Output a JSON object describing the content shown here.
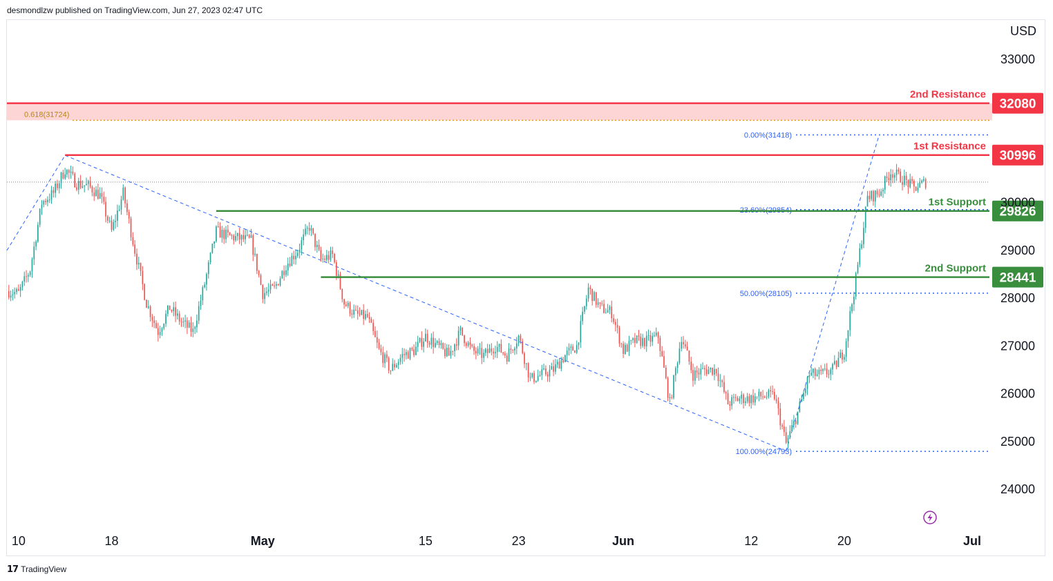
{
  "header": {
    "publisher": "desmondlzw published on TradingView.com, Jun 27, 2023 02:47 UTC"
  },
  "brand": {
    "name": "TradingView",
    "logo": "tv-logo"
  },
  "colors": {
    "up": "#26a69a",
    "down": "#ef5350",
    "resistance": "#f23645",
    "support": "#388e3c",
    "fib": "#2962ff",
    "fib_gold": "#e6a00a",
    "zone": "#fdd5d5",
    "price_dots": "#787b86",
    "lightning": "#9c27b0"
  },
  "icons": {
    "lightning": "lightning-icon"
  },
  "chart_data": {
    "type": "candlestick",
    "currency_label": "USD",
    "y_range": [
      23400,
      33800
    ],
    "y_ticks": [
      24000,
      25000,
      26000,
      27000,
      28000,
      29000,
      30000,
      33000
    ],
    "y_tick_labels": [
      "24000",
      "25000",
      "26000",
      "27000",
      "28000",
      "29000",
      "30000",
      "33000"
    ],
    "x_range_days": [
      "2023-04-09",
      "2023-07-01"
    ],
    "x_ticks": [
      {
        "label": "10",
        "date": "2023-04-10",
        "bold": false
      },
      {
        "label": "18",
        "date": "2023-04-18",
        "bold": false
      },
      {
        "label": "May",
        "date": "2023-05-01",
        "bold": true
      },
      {
        "label": "15",
        "date": "2023-05-15",
        "bold": false
      },
      {
        "label": "23",
        "date": "2023-05-23",
        "bold": false
      },
      {
        "label": "Jun",
        "date": "2023-06-01",
        "bold": true
      },
      {
        "label": "12",
        "date": "2023-06-12",
        "bold": false
      },
      {
        "label": "20",
        "date": "2023-06-20",
        "bold": false
      },
      {
        "label": "Jul",
        "date": "2023-07-01",
        "bold": true
      }
    ],
    "levels": [
      {
        "name": "2nd Resistance",
        "value": 32080,
        "tag": "32080",
        "kind": "resistance",
        "start_date": "2023-04-09"
      },
      {
        "name": "1st Resistance",
        "value": 30996,
        "tag": "30996",
        "kind": "resistance",
        "start_date": "2023-04-14"
      },
      {
        "name": "1st Support",
        "value": 29826,
        "tag": "29826",
        "kind": "support",
        "start_date": "2023-04-27"
      },
      {
        "name": "2nd Support",
        "value": 28441,
        "tag": "28441",
        "kind": "support",
        "start_date": "2023-05-06"
      }
    ],
    "resistance_zone": {
      "from": 31724,
      "to": 32080,
      "start_date": "2023-04-09"
    },
    "fib_gold": {
      "label": "0.618(31724)",
      "value": 31724
    },
    "fib_levels": [
      {
        "label": "0.00%(31418)",
        "value": 31418
      },
      {
        "label": "23.60%(29854)",
        "value": 29854
      },
      {
        "label": "50.00%(28105)",
        "value": 28105
      },
      {
        "label": "100.00%(24793)",
        "value": 24793
      }
    ],
    "current_price": 30430,
    "trendlines": [
      {
        "from": [
          "2023-04-09",
          29000
        ],
        "to": [
          "2023-04-14",
          30990
        ]
      },
      {
        "from": [
          "2023-04-14",
          30990
        ],
        "to": [
          "2023-06-15",
          24800
        ]
      },
      {
        "from": [
          "2023-06-15",
          24800
        ],
        "to": [
          "2023-06-23",
          31418
        ]
      }
    ],
    "close_path": [
      [
        "2023-04-09",
        28150
      ],
      [
        "2023-04-10",
        28100
      ],
      [
        "2023-04-11",
        28600
      ],
      [
        "2023-04-12",
        30000
      ],
      [
        "2023-04-13",
        30200
      ],
      [
        "2023-04-14",
        30700
      ],
      [
        "2023-04-15",
        30400
      ],
      [
        "2023-04-16",
        30350
      ],
      [
        "2023-04-17",
        30150
      ],
      [
        "2023-04-18",
        29400
      ],
      [
        "2023-04-19",
        30200
      ],
      [
        "2023-04-20",
        29000
      ],
      [
        "2023-04-21",
        27900
      ],
      [
        "2023-04-22",
        27300
      ],
      [
        "2023-04-23",
        27800
      ],
      [
        "2023-04-24",
        27500
      ],
      [
        "2023-04-25",
        27300
      ],
      [
        "2023-04-26",
        28300
      ],
      [
        "2023-04-27",
        29400
      ],
      [
        "2023-04-28",
        29300
      ],
      [
        "2023-04-29",
        29250
      ],
      [
        "2023-04-30",
        29200
      ],
      [
        "2023-05-01",
        28100
      ],
      [
        "2023-05-02",
        28200
      ],
      [
        "2023-05-03",
        28700
      ],
      [
        "2023-05-04",
        29000
      ],
      [
        "2023-05-05",
        29500
      ],
      [
        "2023-05-06",
        28800
      ],
      [
        "2023-05-07",
        28900
      ],
      [
        "2023-05-08",
        27900
      ],
      [
        "2023-05-09",
        27650
      ],
      [
        "2023-05-10",
        27600
      ],
      [
        "2023-05-11",
        26900
      ],
      [
        "2023-05-12",
        26500
      ],
      [
        "2023-05-13",
        26800
      ],
      [
        "2023-05-14",
        26900
      ],
      [
        "2023-05-15",
        27200
      ],
      [
        "2023-05-16",
        27000
      ],
      [
        "2023-05-17",
        26800
      ],
      [
        "2023-05-18",
        27300
      ],
      [
        "2023-05-19",
        26900
      ],
      [
        "2023-05-20",
        26800
      ],
      [
        "2023-05-21",
        27000
      ],
      [
        "2023-05-22",
        26800
      ],
      [
        "2023-05-23",
        27200
      ],
      [
        "2023-05-24",
        26300
      ],
      [
        "2023-05-25",
        26400
      ],
      [
        "2023-05-26",
        26500
      ],
      [
        "2023-05-27",
        26800
      ],
      [
        "2023-05-28",
        27000
      ],
      [
        "2023-05-29",
        28200
      ],
      [
        "2023-05-30",
        27800
      ],
      [
        "2023-05-31",
        27700
      ],
      [
        "2023-06-01",
        26900
      ],
      [
        "2023-06-02",
        27100
      ],
      [
        "2023-06-03",
        27100
      ],
      [
        "2023-06-04",
        27200
      ],
      [
        "2023-06-05",
        25800
      ],
      [
        "2023-06-06",
        27200
      ],
      [
        "2023-06-07",
        26400
      ],
      [
        "2023-06-08",
        26500
      ],
      [
        "2023-06-09",
        26500
      ],
      [
        "2023-06-10",
        25800
      ],
      [
        "2023-06-11",
        25900
      ],
      [
        "2023-06-12",
        25900
      ],
      [
        "2023-06-13",
        25950
      ],
      [
        "2023-06-14",
        25950
      ],
      [
        "2023-06-15",
        24950
      ],
      [
        "2023-06-16",
        25600
      ],
      [
        "2023-06-17",
        26400
      ],
      [
        "2023-06-18",
        26400
      ],
      [
        "2023-06-19",
        26500
      ],
      [
        "2023-06-20",
        26900
      ],
      [
        "2023-06-21",
        28400
      ],
      [
        "2023-06-22",
        30100
      ],
      [
        "2023-06-23",
        30200
      ],
      [
        "2023-06-24",
        30650
      ],
      [
        "2023-06-25",
        30500
      ],
      [
        "2023-06-26",
        30300
      ],
      [
        "2023-06-27",
        30430
      ]
    ]
  }
}
